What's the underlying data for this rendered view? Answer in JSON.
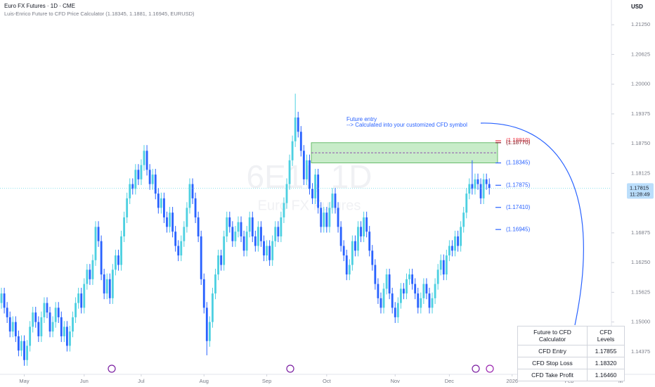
{
  "header": {
    "title": "Euro FX Futures · 1D · CME",
    "indicator": "Luis-Enrico Future to CFD Price Calculator (1.18345, 1.1881, 1.16945, EURUSD)",
    "currency": "USD"
  },
  "chart_data": {
    "type": "candlestick",
    "watermark": "6E1!, 1D",
    "watermark_subtitle": "Euro FX Futures",
    "up_color": "#4dd0e1",
    "down_color": "#2962ff",
    "ohlc": [
      [
        1.154,
        1.1572,
        1.1528,
        1.156
      ],
      [
        1.156,
        1.1572,
        1.1518,
        1.153
      ],
      [
        1.153,
        1.1542,
        1.1498,
        1.151
      ],
      [
        1.151,
        1.1522,
        1.1468,
        1.148
      ],
      [
        1.148,
        1.1512,
        1.1468,
        1.15
      ],
      [
        1.15,
        1.1512,
        1.1458,
        1.147
      ],
      [
        1.147,
        1.1482,
        1.1428,
        1.144
      ],
      [
        1.144,
        1.1472,
        1.1428,
        1.146
      ],
      [
        1.146,
        1.1472,
        1.1408,
        1.142
      ],
      [
        1.142,
        1.1462,
        1.1408,
        1.145
      ],
      [
        1.145,
        1.1502,
        1.1438,
        1.149
      ],
      [
        1.149,
        1.1532,
        1.1478,
        1.152
      ],
      [
        1.152,
        1.1532,
        1.1488,
        1.15
      ],
      [
        1.15,
        1.1512,
        1.1458,
        1.147
      ],
      [
        1.147,
        1.1522,
        1.1458,
        1.151
      ],
      [
        1.151,
        1.1552,
        1.1498,
        1.154
      ],
      [
        1.154,
        1.1552,
        1.1508,
        1.152
      ],
      [
        1.152,
        1.1532,
        1.1468,
        1.148
      ],
      [
        1.148,
        1.1512,
        1.1468,
        1.15
      ],
      [
        1.15,
        1.1542,
        1.1488,
        1.153
      ],
      [
        1.153,
        1.1542,
        1.1498,
        1.151
      ],
      [
        1.151,
        1.1522,
        1.1458,
        1.147
      ],
      [
        1.147,
        1.1502,
        1.1458,
        1.149
      ],
      [
        1.149,
        1.1502,
        1.1438,
        1.145
      ],
      [
        1.145,
        1.1492,
        1.1438,
        1.148
      ],
      [
        1.148,
        1.1522,
        1.1468,
        1.151
      ],
      [
        1.151,
        1.1552,
        1.1498,
        1.154
      ],
      [
        1.154,
        1.1572,
        1.1528,
        1.156
      ],
      [
        1.156,
        1.1572,
        1.1518,
        1.153
      ],
      [
        1.153,
        1.1592,
        1.1518,
        1.158
      ],
      [
        1.158,
        1.1622,
        1.1568,
        1.161
      ],
      [
        1.161,
        1.1622,
        1.1578,
        1.159
      ],
      [
        1.159,
        1.1642,
        1.1578,
        1.163
      ],
      [
        1.163,
        1.1712,
        1.1618,
        1.17
      ],
      [
        1.17,
        1.1712,
        1.1658,
        1.167
      ],
      [
        1.167,
        1.1682,
        1.1588,
        1.16
      ],
      [
        1.16,
        1.1612,
        1.1548,
        1.156
      ],
      [
        1.156,
        1.1602,
        1.1548,
        1.159
      ],
      [
        1.159,
        1.1602,
        1.1538,
        1.155
      ],
      [
        1.155,
        1.1622,
        1.1538,
        1.161
      ],
      [
        1.161,
        1.1652,
        1.1598,
        1.164
      ],
      [
        1.164,
        1.1652,
        1.1608,
        1.162
      ],
      [
        1.162,
        1.1692,
        1.1608,
        1.168
      ],
      [
        1.168,
        1.1732,
        1.1668,
        1.172
      ],
      [
        1.172,
        1.1772,
        1.1708,
        1.176
      ],
      [
        1.176,
        1.1802,
        1.1748,
        1.179
      ],
      [
        1.179,
        1.1802,
        1.1768,
        1.178
      ],
      [
        1.178,
        1.1832,
        1.1768,
        1.182
      ],
      [
        1.182,
        1.1832,
        1.1788,
        1.18
      ],
      [
        1.18,
        1.1842,
        1.1788,
        1.183
      ],
      [
        1.183,
        1.1872,
        1.1818,
        1.186
      ],
      [
        1.186,
        1.1872,
        1.1808,
        1.182
      ],
      [
        1.182,
        1.1832,
        1.1778,
        1.179
      ],
      [
        1.179,
        1.1822,
        1.1778,
        1.181
      ],
      [
        1.181,
        1.1822,
        1.1758,
        1.177
      ],
      [
        1.177,
        1.1782,
        1.1728,
        1.174
      ],
      [
        1.174,
        1.1772,
        1.1728,
        1.176
      ],
      [
        1.176,
        1.1772,
        1.1708,
        1.172
      ],
      [
        1.172,
        1.1732,
        1.1688,
        1.17
      ],
      [
        1.17,
        1.1742,
        1.1688,
        1.173
      ],
      [
        1.173,
        1.1742,
        1.1678,
        1.169
      ],
      [
        1.169,
        1.1702,
        1.1648,
        1.166
      ],
      [
        1.166,
        1.1672,
        1.1628,
        1.164
      ],
      [
        1.164,
        1.1682,
        1.1628,
        1.167
      ],
      [
        1.167,
        1.1712,
        1.1658,
        1.17
      ],
      [
        1.17,
        1.1752,
        1.1688,
        1.174
      ],
      [
        1.174,
        1.1802,
        1.1728,
        1.179
      ],
      [
        1.179,
        1.1802,
        1.1748,
        1.176
      ],
      [
        1.176,
        1.1772,
        1.1708,
        1.172
      ],
      [
        1.172,
        1.1732,
        1.1668,
        1.168
      ],
      [
        1.168,
        1.1692,
        1.1578,
        1.159
      ],
      [
        1.159,
        1.1602,
        1.1518,
        1.153
      ],
      [
        1.153,
        1.1542,
        1.143,
        1.146
      ],
      [
        1.146,
        1.1512,
        1.1448,
        1.15
      ],
      [
        1.15,
        1.1572,
        1.1488,
        1.156
      ],
      [
        1.156,
        1.1612,
        1.1548,
        1.16
      ],
      [
        1.16,
        1.1652,
        1.1588,
        1.164
      ],
      [
        1.164,
        1.1652,
        1.1608,
        1.162
      ],
      [
        1.162,
        1.1692,
        1.1608,
        1.168
      ],
      [
        1.168,
        1.1732,
        1.1668,
        1.172
      ],
      [
        1.172,
        1.1732,
        1.1688,
        1.17
      ],
      [
        1.17,
        1.1712,
        1.1658,
        1.167
      ],
      [
        1.167,
        1.1702,
        1.1658,
        1.169
      ],
      [
        1.169,
        1.1722,
        1.1678,
        1.171
      ],
      [
        1.171,
        1.1722,
        1.1668,
        1.168
      ],
      [
        1.168,
        1.1692,
        1.1638,
        1.165
      ],
      [
        1.165,
        1.1702,
        1.1638,
        1.169
      ],
      [
        1.169,
        1.1732,
        1.1678,
        1.172
      ],
      [
        1.172,
        1.1732,
        1.1668,
        1.168
      ],
      [
        1.168,
        1.1692,
        1.1648,
        1.166
      ],
      [
        1.166,
        1.1712,
        1.1648,
        1.17
      ],
      [
        1.17,
        1.1712,
        1.1658,
        1.167
      ],
      [
        1.167,
        1.1682,
        1.1628,
        1.164
      ],
      [
        1.164,
        1.1672,
        1.1628,
        1.166
      ],
      [
        1.166,
        1.1672,
        1.1618,
        1.163
      ],
      [
        1.163,
        1.1682,
        1.1618,
        1.167
      ],
      [
        1.167,
        1.1712,
        1.1658,
        1.17
      ],
      [
        1.17,
        1.1712,
        1.1668,
        1.168
      ],
      [
        1.168,
        1.1732,
        1.1668,
        1.172
      ],
      [
        1.172,
        1.1762,
        1.1708,
        1.175
      ],
      [
        1.175,
        1.1802,
        1.1738,
        1.179
      ],
      [
        1.179,
        1.1852,
        1.1778,
        1.184
      ],
      [
        1.184,
        1.1892,
        1.1828,
        1.188
      ],
      [
        1.188,
        1.198,
        1.1868,
        1.193
      ],
      [
        1.193,
        1.1942,
        1.1888,
        1.19
      ],
      [
        1.19,
        1.1912,
        1.1848,
        1.186
      ],
      [
        1.186,
        1.1872,
        1.1788,
        1.18
      ],
      [
        1.18,
        1.1852,
        1.1788,
        1.184
      ],
      [
        1.184,
        1.1852,
        1.1768,
        1.178
      ],
      [
        1.178,
        1.1792,
        1.1748,
        1.176
      ],
      [
        1.176,
        1.1822,
        1.1748,
        1.181
      ],
      [
        1.181,
        1.1822,
        1.1728,
        1.174
      ],
      [
        1.174,
        1.1752,
        1.1688,
        1.17
      ],
      [
        1.17,
        1.1742,
        1.1688,
        1.173
      ],
      [
        1.173,
        1.1742,
        1.1688,
        1.17
      ],
      [
        1.17,
        1.1752,
        1.1688,
        1.174
      ],
      [
        1.174,
        1.1782,
        1.1728,
        1.177
      ],
      [
        1.177,
        1.1782,
        1.1728,
        1.174
      ],
      [
        1.174,
        1.1752,
        1.1688,
        1.17
      ],
      [
        1.17,
        1.1712,
        1.1648,
        1.166
      ],
      [
        1.166,
        1.1672,
        1.1628,
        1.164
      ],
      [
        1.164,
        1.1652,
        1.1588,
        1.16
      ],
      [
        1.16,
        1.1632,
        1.1588,
        1.162
      ],
      [
        1.162,
        1.1682,
        1.1608,
        1.167
      ],
      [
        1.167,
        1.1682,
        1.1638,
        1.165
      ],
      [
        1.165,
        1.1712,
        1.1638,
        1.17
      ],
      [
        1.17,
        1.1712,
        1.1668,
        1.168
      ],
      [
        1.168,
        1.1732,
        1.1668,
        1.172
      ],
      [
        1.172,
        1.1732,
        1.1678,
        1.169
      ],
      [
        1.169,
        1.1702,
        1.1638,
        1.165
      ],
      [
        1.165,
        1.1662,
        1.1608,
        1.162
      ],
      [
        1.162,
        1.1632,
        1.1568,
        1.158
      ],
      [
        1.158,
        1.1592,
        1.1538,
        1.155
      ],
      [
        1.155,
        1.1562,
        1.1518,
        1.153
      ],
      [
        1.153,
        1.1582,
        1.1518,
        1.157
      ],
      [
        1.157,
        1.1612,
        1.1558,
        1.16
      ],
      [
        1.16,
        1.1612,
        1.1548,
        1.156
      ],
      [
        1.156,
        1.1572,
        1.1518,
        1.153
      ],
      [
        1.153,
        1.1542,
        1.1498,
        1.151
      ],
      [
        1.151,
        1.1552,
        1.1498,
        1.154
      ],
      [
        1.154,
        1.1582,
        1.1528,
        1.157
      ],
      [
        1.157,
        1.1582,
        1.1548,
        1.156
      ],
      [
        1.156,
        1.1602,
        1.1548,
        1.159
      ],
      [
        1.159,
        1.1612,
        1.1578,
        1.16
      ],
      [
        1.16,
        1.1612,
        1.1568,
        1.158
      ],
      [
        1.158,
        1.1592,
        1.1548,
        1.156
      ],
      [
        1.156,
        1.1572,
        1.1518,
        1.153
      ],
      [
        1.153,
        1.1562,
        1.1518,
        1.155
      ],
      [
        1.155,
        1.1592,
        1.1538,
        1.158
      ],
      [
        1.158,
        1.1592,
        1.1548,
        1.156
      ],
      [
        1.156,
        1.1572,
        1.1518,
        1.153
      ],
      [
        1.153,
        1.1562,
        1.1518,
        1.155
      ],
      [
        1.155,
        1.1592,
        1.1538,
        1.158
      ],
      [
        1.158,
        1.1622,
        1.1568,
        1.161
      ],
      [
        1.161,
        1.1642,
        1.1598,
        1.163
      ],
      [
        1.163,
        1.1642,
        1.1588,
        1.16
      ],
      [
        1.16,
        1.1652,
        1.1588,
        1.164
      ],
      [
        1.164,
        1.1672,
        1.1628,
        1.166
      ],
      [
        1.166,
        1.1672,
        1.1638,
        1.165
      ],
      [
        1.165,
        1.1692,
        1.1638,
        1.168
      ],
      [
        1.168,
        1.1692,
        1.1648,
        1.166
      ],
      [
        1.166,
        1.1712,
        1.1648,
        1.17
      ],
      [
        1.17,
        1.1742,
        1.1688,
        1.173
      ],
      [
        1.173,
        1.1782,
        1.1718,
        1.177
      ],
      [
        1.177,
        1.1802,
        1.1758,
        1.179
      ],
      [
        1.179,
        1.184,
        1.1768,
        1.178
      ],
      [
        1.178,
        1.1812,
        1.1768,
        1.18
      ],
      [
        1.18,
        1.1812,
        1.1778,
        1.179
      ],
      [
        1.179,
        1.1802,
        1.1748,
        1.176
      ],
      [
        1.176,
        1.1812,
        1.1748,
        1.18
      ],
      [
        1.18,
        1.1812,
        1.1778,
        1.179
      ],
      [
        1.179,
        1.1802,
        1.1768,
        1.17815
      ]
    ],
    "xlim": [
      -0.5,
      217.5
    ],
    "xticks": [
      {
        "value": 8,
        "label": "May"
      },
      {
        "value": 29,
        "label": "Jun"
      },
      {
        "value": 49,
        "label": "Jul"
      },
      {
        "value": 71,
        "label": "Aug"
      },
      {
        "value": 93,
        "label": "Sep"
      },
      {
        "value": 114,
        "label": "Oct"
      },
      {
        "value": 138,
        "label": "Nov"
      },
      {
        "value": 157,
        "label": "Dec"
      },
      {
        "value": 179,
        "label": "2026"
      },
      {
        "value": 199,
        "label": "Feb"
      },
      {
        "value": 217,
        "label": "M"
      }
    ],
    "ylim": [
      1.139,
      1.2177
    ],
    "yticks": [
      {
        "value": 1.2125,
        "label": "1.21250"
      },
      {
        "value": 1.20625,
        "label": "1.20625"
      },
      {
        "value": 1.2,
        "label": "1.20000"
      },
      {
        "value": 1.19375,
        "label": "1.19375"
      },
      {
        "value": 1.1875,
        "label": "1.18750"
      },
      {
        "value": 1.18125,
        "label": "1.18125"
      },
      {
        "value": 1.16875,
        "label": "1.16875"
      },
      {
        "value": 1.1625,
        "label": "1.16250"
      },
      {
        "value": 1.15625,
        "label": "1.15625"
      },
      {
        "value": 1.15,
        "label": "1.15000"
      },
      {
        "value": 1.14375,
        "label": "1.14375"
      }
    ],
    "last_price_time": "11:28:49",
    "annotation": [
      "Future entry",
      "--> Calculated into your customized CFD symbol"
    ],
    "levels": [
      {
        "value": 1.1881,
        "label": "(1.18810)",
        "color": "#f23645"
      },
      {
        "value": 1.1877,
        "label": "(1.18770)",
        "color": "#801922"
      },
      {
        "value": 1.18345,
        "label": "(1.18345)",
        "color": "#2962ff"
      },
      {
        "value": 1.17875,
        "label": "(1.17875)",
        "color": "#2962ff"
      },
      {
        "value": 1.1741,
        "label": "(1.17410)",
        "color": "#2962ff"
      },
      {
        "value": 1.16945,
        "label": "(1.16945)",
        "color": "#2962ff"
      }
    ],
    "zone_color": "#c8ecc9"
  },
  "table": {
    "header": [
      "Future to CFD Calculator",
      "CFD Levels"
    ],
    "rows": [
      [
        "CFD Entry",
        "1.17855"
      ],
      [
        "CFD Stop Loss",
        "1.18320"
      ],
      [
        "CFD Take Profit",
        "1.16460"
      ]
    ]
  }
}
